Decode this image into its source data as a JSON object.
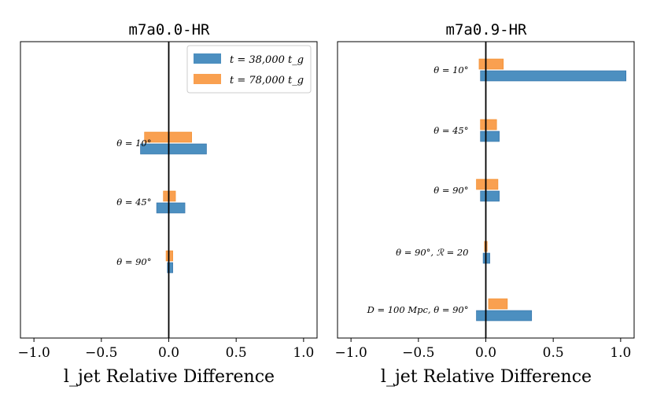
{
  "colors": {
    "series1": "#4c8fc0",
    "series1_edge": "#2f6ea6",
    "series2": "#f9a050",
    "series2_edge": "#f28a26"
  },
  "legend": [
    {
      "label": "t = 38,000 t_g"
    },
    {
      "label": "t = 78,000 t_g"
    }
  ],
  "chart_data": [
    {
      "type": "bar",
      "orientation": "horizontal",
      "title": "m7a0.0-HR",
      "xlabel": "l_jet Relative Difference",
      "xlim": [
        -1.1,
        1.1
      ],
      "xticks": [
        "−1.0",
        "−0.5",
        "0.0",
        "0.5",
        "1.0"
      ],
      "xtick_values": [
        -1.0,
        -0.5,
        0.0,
        0.5,
        1.0
      ],
      "legend_location": "upper right",
      "categories": [
        "θ = 10°",
        "θ = 45°",
        "θ = 90°"
      ],
      "series": [
        {
          "name": "t = 38,000 t_g",
          "bars": [
            {
              "from": -0.21,
              "to": 0.28
            },
            {
              "from": -0.09,
              "to": 0.12
            },
            {
              "from": -0.01,
              "to": 0.03
            }
          ]
        },
        {
          "name": "t = 78,000 t_g",
          "bars": [
            {
              "from": -0.18,
              "to": 0.17
            },
            {
              "from": -0.04,
              "to": 0.05
            },
            {
              "from": -0.02,
              "to": 0.03
            }
          ]
        }
      ]
    },
    {
      "type": "bar",
      "orientation": "horizontal",
      "title": "m7a0.9-HR",
      "xlabel": "l_jet Relative Difference",
      "xlim": [
        -1.1,
        1.1
      ],
      "xticks": [
        "−1.0",
        "−0.5",
        "0.0",
        "0.5",
        "1.0"
      ],
      "xtick_values": [
        -1.0,
        -0.5,
        0.0,
        0.5,
        1.0
      ],
      "categories": [
        "θ = 10°",
        "θ = 45°",
        "θ = 90°",
        "θ = 90°, ℛ = 20",
        "D = 100 Mpc, θ = 90°"
      ],
      "series": [
        {
          "name": "t = 38,000 t_g",
          "bars": [
            {
              "from": -0.04,
              "to": 1.04
            },
            {
              "from": -0.04,
              "to": 0.1
            },
            {
              "from": -0.04,
              "to": 0.1
            },
            {
              "from": -0.02,
              "to": 0.03
            },
            {
              "from": -0.07,
              "to": 0.34
            }
          ]
        },
        {
          "name": "t = 78,000 t_g",
          "bars": [
            {
              "from": -0.05,
              "to": 0.13
            },
            {
              "from": -0.04,
              "to": 0.08
            },
            {
              "from": -0.07,
              "to": 0.09
            },
            {
              "from": -0.01,
              "to": 0.01
            },
            {
              "from": 0.02,
              "to": 0.16
            }
          ]
        }
      ]
    }
  ]
}
